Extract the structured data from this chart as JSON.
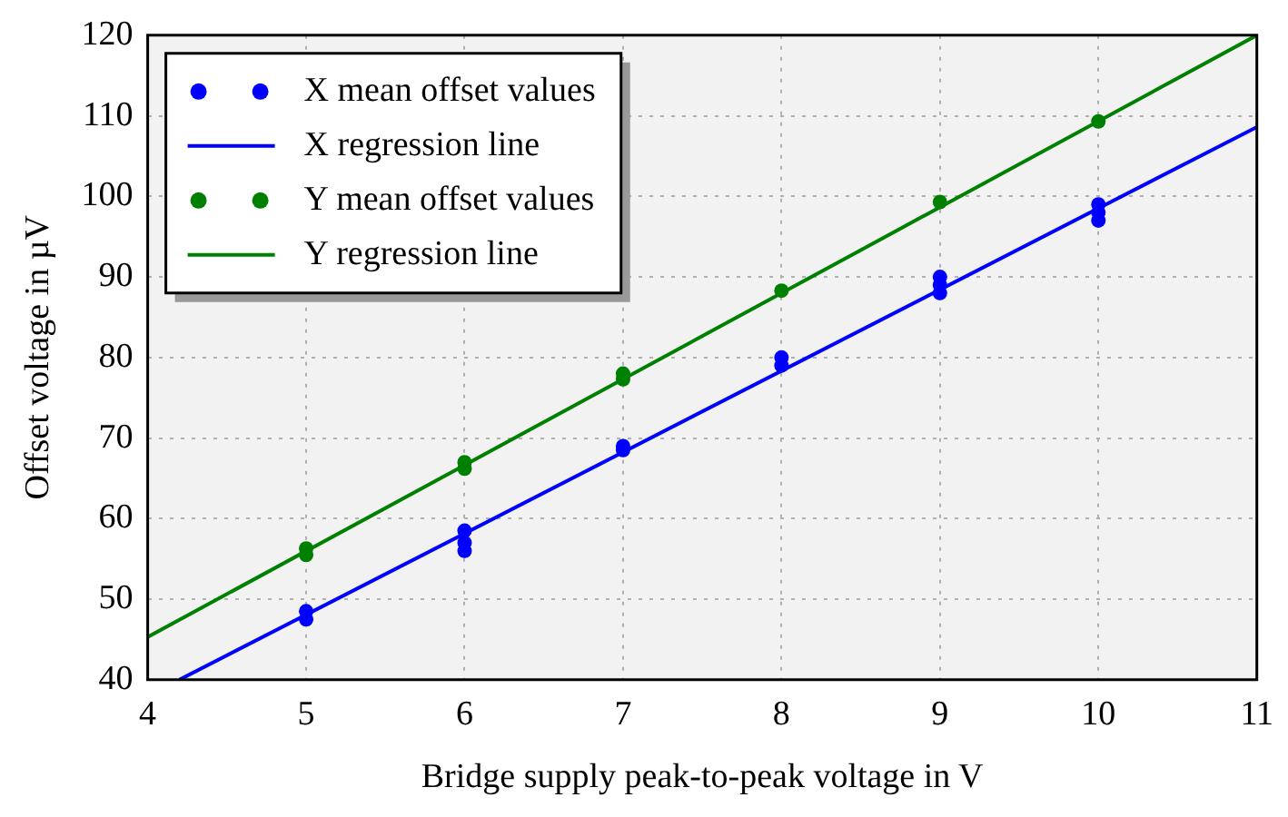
{
  "chart_data": {
    "type": "scatter",
    "xlabel": "Bridge supply peak-to-peak voltage in V",
    "ylabel": "Offset voltage in µV",
    "xlim": [
      4,
      11
    ],
    "ylim": [
      40,
      120
    ],
    "xticks": [
      4,
      5,
      6,
      7,
      8,
      9,
      10,
      11
    ],
    "yticks": [
      40,
      50,
      60,
      70,
      80,
      90,
      100,
      110,
      120
    ],
    "grid": true,
    "legend": "top left",
    "series": [
      {
        "name": "X mean offset values",
        "marker": "circle",
        "color": "#0000ff",
        "x": [
          5,
          5,
          6,
          6,
          6,
          7,
          7,
          8,
          8,
          9,
          9,
          9,
          10,
          10,
          10
        ],
        "values": [
          47.5,
          48.5,
          56,
          57,
          58.5,
          68.5,
          69,
          79,
          80,
          88,
          89,
          90,
          97,
          98,
          99
        ]
      },
      {
        "name": "X regression line",
        "type": "line",
        "marker": "none",
        "color": "#0000ff",
        "x": [
          4.2,
          11
        ],
        "values": [
          40,
          108.6
        ]
      },
      {
        "name": "Y mean offset values",
        "marker": "circle",
        "color": "#008000",
        "x": [
          5,
          5,
          6,
          6,
          7,
          7,
          8,
          9,
          10
        ],
        "values": [
          55.5,
          56.3,
          66.2,
          67,
          77.3,
          78,
          88.3,
          99.3,
          109.3
        ]
      },
      {
        "name": "Y regression line",
        "type": "line",
        "marker": "none",
        "color": "#008000",
        "x": [
          4,
          11
        ],
        "values": [
          45.3,
          120
        ]
      }
    ]
  }
}
